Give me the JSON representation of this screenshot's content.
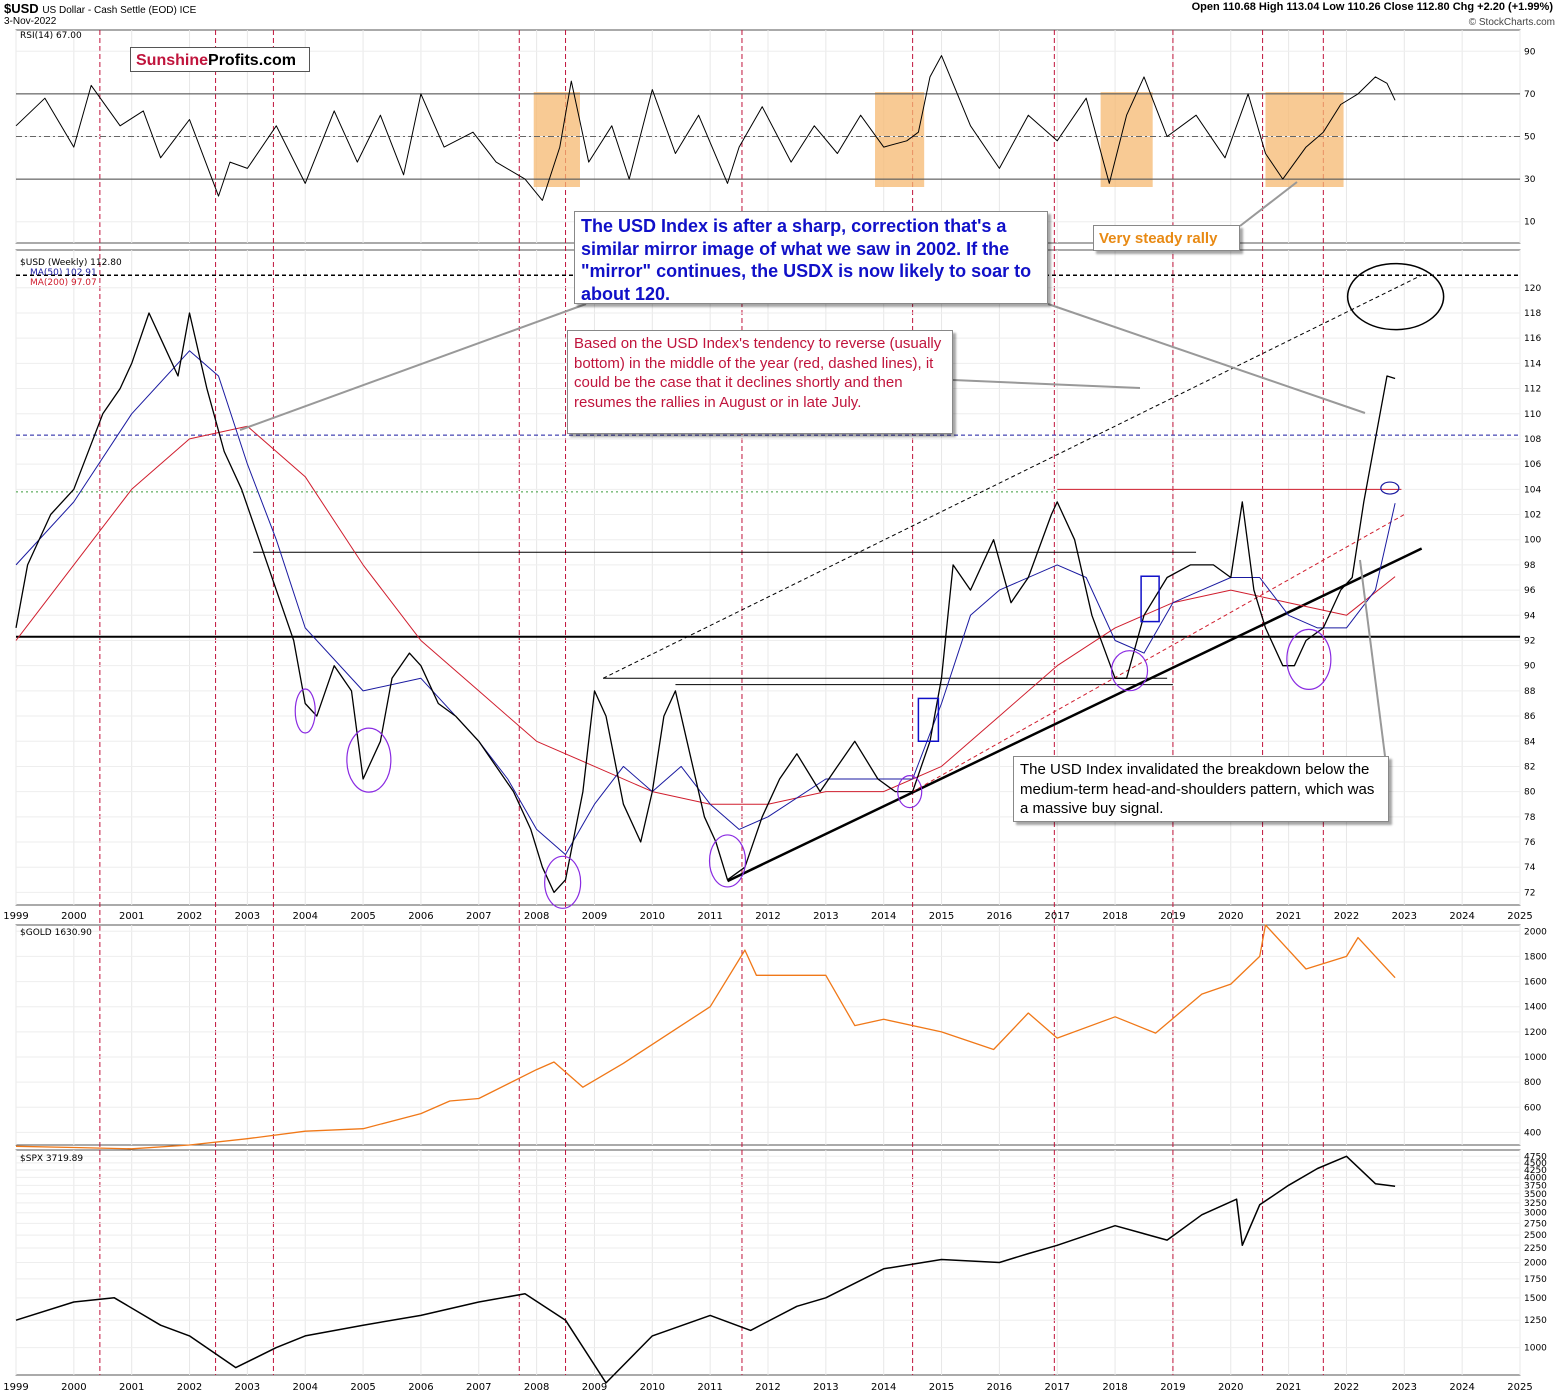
{
  "header": {
    "symbol": "$USD",
    "name": "US Dollar - Cash Settle (EOD) ICE",
    "date": "3-Nov-2022",
    "ohlc": "Open 110.68  High 113.04  Low 110.26  Close 112.80  Chg +2.20 (+1.99%)",
    "credit": "© StockCharts.com"
  },
  "logo": {
    "part1": "Sunshine",
    "part2": "Profits.com"
  },
  "annotations": {
    "blue": "The USD Index is after a sharp, correction that's a similar mirror image of what we saw in 2002. If the \"mirror\" continues, the USDX is now likely to soar to about 120.",
    "red": "Based on the USD Index's tendency to reverse (usually bottom) in the middle of the year (red, dashed lines), it could be the case that it declines shortly and then resumes the rallies in August or in late July.",
    "black": "The USD Index invalidated the breakdown below the medium-term head-and-shoulders pattern, which was a massive buy signal.",
    "orange": "Very steady rally"
  },
  "colors": {
    "rsi": "#000000",
    "usd": "#000000",
    "ma50": "#1a1aa0",
    "ma200": "#d01e2e",
    "gold": "#f07818",
    "spx": "#000000",
    "highlight": "#f5b870",
    "midyear": "#c0143c"
  },
  "chart_data": [
    {
      "type": "line",
      "title": "RSI(14) 67.00",
      "ylim": [
        0,
        100
      ],
      "yticks": [
        10,
        30,
        50,
        70,
        90
      ],
      "x": [
        1999.0,
        1999.5,
        2000.0,
        2000.3,
        2000.8,
        2001.2,
        2001.5,
        2002.0,
        2002.5,
        2002.7,
        2003.0,
        2003.5,
        2004.0,
        2004.5,
        2004.9,
        2005.3,
        2005.7,
        2006.0,
        2006.4,
        2006.9,
        2007.3,
        2007.8,
        2008.1,
        2008.4,
        2008.6,
        2008.9,
        2009.3,
        2009.6,
        2010.0,
        2010.4,
        2010.8,
        2011.3,
        2011.5,
        2011.9,
        2012.4,
        2012.8,
        2013.2,
        2013.6,
        2014.0,
        2014.4,
        2014.6,
        2014.8,
        2015.0,
        2015.5,
        2016.0,
        2016.5,
        2017.0,
        2017.5,
        2017.9,
        2018.2,
        2018.5,
        2018.9,
        2019.4,
        2019.9,
        2020.3,
        2020.6,
        2020.9,
        2021.3,
        2021.6,
        2021.9,
        2022.2,
        2022.5,
        2022.7,
        2022.84
      ],
      "values": [
        55,
        68,
        45,
        74,
        55,
        62,
        40,
        58,
        22,
        38,
        35,
        55,
        28,
        62,
        38,
        60,
        32,
        70,
        45,
        52,
        38,
        30,
        20,
        45,
        76,
        38,
        55,
        30,
        72,
        42,
        60,
        28,
        45,
        64,
        38,
        55,
        42,
        60,
        45,
        48,
        52,
        78,
        88,
        55,
        35,
        60,
        48,
        68,
        28,
        60,
        78,
        50,
        60,
        40,
        70,
        42,
        30,
        45,
        52,
        65,
        70,
        78,
        75,
        67
      ]
    },
    {
      "type": "line",
      "title": "$USD (Weekly) 112.80",
      "ylim": [
        71,
        123
      ],
      "yticks": [
        72,
        74,
        76,
        78,
        80,
        82,
        84,
        86,
        88,
        90,
        92,
        94,
        96,
        98,
        100,
        102,
        104,
        106,
        108,
        110,
        112,
        114,
        116,
        118,
        120
      ],
      "xlim": [
        1999,
        2025
      ],
      "xticks": [
        "1999",
        "2000",
        "2001",
        "2002",
        "2003",
        "2004",
        "2005",
        "2006",
        "2007",
        "2008",
        "2009",
        "2010",
        "2011",
        "2012",
        "2013",
        "2014",
        "2015",
        "2016",
        "2017",
        "2018",
        "2019",
        "2020",
        "2021",
        "2022",
        "2023",
        "2024",
        "2025"
      ],
      "series": [
        {
          "name": "$USD (Weekly) 112.80",
          "x": [
            1999.0,
            1999.2,
            1999.6,
            2000.0,
            2000.5,
            2000.8,
            2001.0,
            2001.3,
            2001.5,
            2001.8,
            2002.0,
            2002.3,
            2002.6,
            2002.9,
            2003.2,
            2003.5,
            2003.8,
            2004.0,
            2004.2,
            2004.5,
            2004.8,
            2005.0,
            2005.3,
            2005.5,
            2005.8,
            2006.0,
            2006.3,
            2006.6,
            2007.0,
            2007.3,
            2007.6,
            2007.9,
            2008.1,
            2008.3,
            2008.5,
            2008.8,
            2009.0,
            2009.2,
            2009.5,
            2009.8,
            2010.0,
            2010.2,
            2010.4,
            2010.6,
            2010.9,
            2011.1,
            2011.3,
            2011.6,
            2011.9,
            2012.2,
            2012.5,
            2012.9,
            2013.2,
            2013.5,
            2013.9,
            2014.2,
            2014.5,
            2014.8,
            2015.0,
            2015.2,
            2015.5,
            2015.9,
            2016.2,
            2016.5,
            2016.9,
            2017.0,
            2017.3,
            2017.6,
            2018.0,
            2018.2,
            2018.5,
            2018.9,
            2019.3,
            2019.7,
            2020.0,
            2020.2,
            2020.4,
            2020.6,
            2020.9,
            2021.1,
            2021.3,
            2021.6,
            2021.9,
            2022.1,
            2022.3,
            2022.5,
            2022.7,
            2022.84
          ],
          "values": [
            93,
            98,
            102,
            104,
            110,
            112,
            114,
            118,
            116,
            113,
            118,
            112,
            107,
            104,
            100,
            96,
            92,
            87,
            86,
            90,
            88,
            81,
            84,
            89,
            91,
            90,
            87,
            86,
            84,
            82,
            80,
            77,
            74,
            72,
            73,
            80,
            88,
            86,
            79,
            76,
            80,
            86,
            88,
            84,
            78,
            76,
            73,
            74,
            78,
            81,
            83,
            80,
            82,
            84,
            81,
            80,
            80,
            84,
            89,
            98,
            96,
            100,
            95,
            97,
            102,
            103,
            100,
            94,
            89,
            89,
            94,
            97,
            98,
            98,
            97,
            103,
            96,
            93,
            90,
            90,
            92,
            93,
            96,
            97,
            103,
            108,
            113,
            112.8
          ]
        },
        {
          "name": "MA(50) 102.91",
          "x": [
            1999.0,
            2000.0,
            2001.0,
            2002.0,
            2002.5,
            2003.0,
            2003.5,
            2004.0,
            2005.0,
            2006.0,
            2007.0,
            2007.5,
            2008.0,
            2008.5,
            2009.0,
            2009.5,
            2010.0,
            2010.5,
            2011.0,
            2011.5,
            2012.0,
            2013.0,
            2014.0,
            2014.5,
            2015.0,
            2015.5,
            2016.0,
            2017.0,
            2017.5,
            2018.0,
            2018.5,
            2019.0,
            2019.5,
            2020.0,
            2020.5,
            2021.0,
            2021.5,
            2022.0,
            2022.5,
            2022.84
          ],
          "values": [
            98,
            103,
            110,
            115,
            113,
            106,
            100,
            93,
            88,
            89,
            84,
            81,
            77,
            75,
            79,
            82,
            80,
            82,
            79,
            77,
            78,
            81,
            81,
            81,
            87,
            94,
            96,
            98,
            97,
            92,
            91,
            95,
            96,
            97,
            97,
            94,
            93,
            93,
            96,
            102.9
          ]
        },
        {
          "name": "MA(200) 97.07",
          "x": [
            1999.0,
            2000.0,
            2001.0,
            2002.0,
            2003.0,
            2004.0,
            2005.0,
            2006.0,
            2007.0,
            2008.0,
            2009.0,
            2010.0,
            2011.0,
            2012.0,
            2013.0,
            2014.0,
            2015.0,
            2016.0,
            2017.0,
            2018.0,
            2019.0,
            2020.0,
            2021.0,
            2022.0,
            2022.84
          ],
          "values": [
            92,
            98,
            104,
            108,
            109,
            105,
            98,
            92,
            88,
            84,
            82,
            80,
            79,
            79,
            80,
            80,
            82,
            86,
            90,
            93,
            95,
            96,
            95,
            94,
            97.07
          ]
        }
      ]
    },
    {
      "type": "line",
      "title": "$GOLD 1630.90",
      "ylim": [
        300,
        2050
      ],
      "yticks": [
        400,
        600,
        800,
        1000,
        1200,
        1400,
        1600,
        1800,
        2000
      ],
      "x": [
        1999.0,
        2000.0,
        2001.0,
        2002.0,
        2003.0,
        2004.0,
        2005.0,
        2006.0,
        2006.5,
        2007.0,
        2008.0,
        2008.3,
        2008.8,
        2009.5,
        2010.0,
        2010.5,
        2011.0,
        2011.6,
        2011.8,
        2012.5,
        2013.0,
        2013.5,
        2014.0,
        2015.0,
        2015.9,
        2016.5,
        2017.0,
        2018.0,
        2018.7,
        2019.5,
        2020.0,
        2020.5,
        2020.6,
        2021.0,
        2021.3,
        2022.0,
        2022.2,
        2022.5,
        2022.84
      ],
      "values": [
        290,
        280,
        270,
        300,
        350,
        410,
        430,
        550,
        650,
        670,
        900,
        960,
        760,
        950,
        1100,
        1250,
        1400,
        1850,
        1650,
        1650,
        1650,
        1250,
        1300,
        1200,
        1060,
        1350,
        1150,
        1320,
        1190,
        1500,
        1580,
        1800,
        2050,
        1850,
        1700,
        1800,
        1950,
        1800,
        1630.9
      ]
    },
    {
      "type": "line",
      "title": "$SPX 3719.89",
      "ylim": [
        800,
        5000
      ],
      "yticks": [
        1000,
        1250,
        1500,
        1750,
        2000,
        2250,
        2500,
        2750,
        3000,
        3250,
        3500,
        3750,
        4000,
        4250,
        4500,
        4750
      ],
      "xticks": [
        "1999",
        "2000",
        "2001",
        "2002",
        "2003",
        "2004",
        "2005",
        "2006",
        "2007",
        "2008",
        "2009",
        "2010",
        "2011",
        "2012",
        "2013",
        "2014",
        "2015",
        "2016",
        "2017",
        "2018",
        "2019",
        "2020",
        "2021",
        "2022",
        "2023",
        "2024",
        "2025"
      ],
      "x": [
        1999.0,
        2000.0,
        2000.7,
        2001.5,
        2002.0,
        2002.8,
        2003.5,
        2004.0,
        2005.0,
        2006.0,
        2007.0,
        2007.8,
        2008.5,
        2009.2,
        2010.0,
        2011.0,
        2011.7,
        2012.5,
        2013.0,
        2014.0,
        2015.0,
        2016.0,
        2016.5,
        2017.0,
        2018.0,
        2018.9,
        2019.5,
        2020.1,
        2020.2,
        2020.5,
        2021.0,
        2021.5,
        2022.0,
        2022.5,
        2022.84
      ],
      "values": [
        1250,
        1450,
        1500,
        1200,
        1100,
        850,
        1000,
        1100,
        1200,
        1300,
        1450,
        1550,
        1250,
        750,
        1100,
        1300,
        1150,
        1400,
        1500,
        1900,
        2050,
        2000,
        2150,
        2300,
        2700,
        2400,
        2950,
        3350,
        2300,
        3200,
        3750,
        4300,
        4750,
        3800,
        3719.89
      ]
    }
  ]
}
